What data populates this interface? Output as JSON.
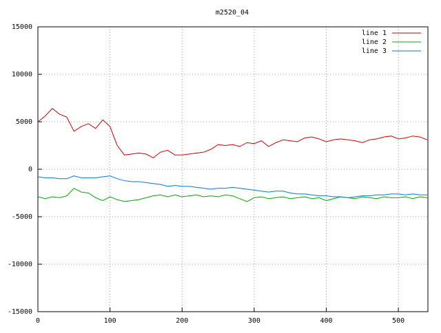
{
  "chart_data": {
    "type": "line",
    "title": "m2520_04",
    "x": [
      0,
      10,
      20,
      30,
      40,
      50,
      60,
      70,
      80,
      90,
      100,
      110,
      120,
      130,
      140,
      150,
      160,
      170,
      180,
      190,
      200,
      210,
      220,
      230,
      240,
      250,
      260,
      270,
      280,
      290,
      300,
      310,
      320,
      330,
      340,
      350,
      360,
      370,
      380,
      390,
      400,
      410,
      420,
      430,
      440,
      450,
      460,
      470,
      480,
      490,
      500,
      510,
      520,
      530,
      540
    ],
    "series": [
      {
        "name": "line 1",
        "color": "#cc0000",
        "values": [
          5000,
          5600,
          6400,
          5800,
          5500,
          4000,
          4500,
          4800,
          4300,
          5200,
          4500,
          2500,
          1500,
          1600,
          1700,
          1600,
          1200,
          1800,
          2000,
          1500,
          1500,
          1600,
          1700,
          1800,
          2100,
          2600,
          2500,
          2600,
          2400,
          2800,
          2700,
          3000,
          2400,
          2800,
          3100,
          3000,
          2900,
          3300,
          3400,
          3200,
          2900,
          3100,
          3200,
          3100,
          3000,
          2800,
          3100,
          3200,
          3400,
          3500,
          3200,
          3300,
          3500,
          3400,
          3100
        ]
      },
      {
        "name": "line 2",
        "color": "#00aa00",
        "values": [
          -2900,
          -3100,
          -2900,
          -3000,
          -2800,
          -2000,
          -2400,
          -2500,
          -3000,
          -3300,
          -2900,
          -3200,
          -3400,
          -3300,
          -3200,
          -3000,
          -2800,
          -2700,
          -2900,
          -2700,
          -2900,
          -2800,
          -2700,
          -2900,
          -2800,
          -2900,
          -2700,
          -2800,
          -3100,
          -3400,
          -3000,
          -2900,
          -3100,
          -3000,
          -2900,
          -3100,
          -3000,
          -2900,
          -3100,
          -3000,
          -3300,
          -3100,
          -2900,
          -3000,
          -3100,
          -2900,
          -3000,
          -3100,
          -2900,
          -3000,
          -3000,
          -2900,
          -3100,
          -2900,
          -3000
        ]
      },
      {
        "name": "line 3",
        "color": "#0077dd",
        "values": [
          -800,
          -900,
          -900,
          -1000,
          -1000,
          -700,
          -900,
          -900,
          -900,
          -800,
          -700,
          -1000,
          -1200,
          -1300,
          -1300,
          -1400,
          -1500,
          -1600,
          -1800,
          -1700,
          -1800,
          -1800,
          -1900,
          -2000,
          -2100,
          -2000,
          -2000,
          -1900,
          -2000,
          -2100,
          -2200,
          -2300,
          -2400,
          -2300,
          -2300,
          -2500,
          -2600,
          -2600,
          -2700,
          -2800,
          -2800,
          -2900,
          -2900,
          -3000,
          -2900,
          -2800,
          -2800,
          -2700,
          -2700,
          -2600,
          -2600,
          -2700,
          -2600,
          -2700,
          -2700
        ]
      }
    ],
    "xlim": [
      0,
      541
    ],
    "xticks": [
      0,
      100,
      200,
      300,
      400,
      500
    ],
    "ylim": [
      -15000,
      15000
    ],
    "yticks": [
      -15000,
      -10000,
      -5000,
      0,
      5000,
      10000,
      15000
    ],
    "grid": true,
    "legend": "top-right"
  }
}
